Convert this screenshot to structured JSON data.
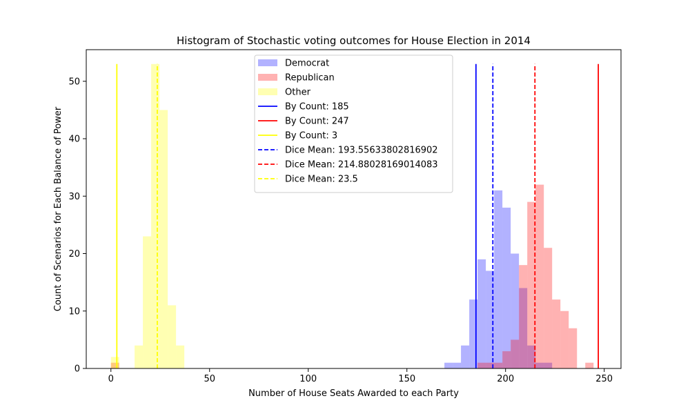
{
  "chart_data": {
    "type": "bar",
    "title": "Histogram of Stochastic voting outcomes for House Election in 2014",
    "xlabel": "Number of House Seats Awarded to each Party",
    "ylabel": "Count of Scenarios for Each Balance of Power",
    "xlim": [
      -12.5,
      258.5
    ],
    "ylim": [
      0,
      55.5
    ],
    "xticks": [
      0,
      50,
      100,
      150,
      200,
      250
    ],
    "yticks": [
      0,
      10,
      20,
      30,
      40,
      50
    ],
    "legend_position": "upper-center",
    "histograms": [
      {
        "name": "Democrat",
        "color": "#0000ff",
        "opacity": 0.3,
        "bin_width": 4.2,
        "bins": [
          {
            "x": 169,
            "count": 1
          },
          {
            "x": 173.2,
            "count": 1
          },
          {
            "x": 177.4,
            "count": 4
          },
          {
            "x": 181.6,
            "count": 12
          },
          {
            "x": 185.8,
            "count": 19
          },
          {
            "x": 190,
            "count": 17
          },
          {
            "x": 194.2,
            "count": 31
          },
          {
            "x": 198.4,
            "count": 28
          },
          {
            "x": 202.6,
            "count": 20
          },
          {
            "x": 206.8,
            "count": 14
          },
          {
            "x": 211,
            "count": 4
          },
          {
            "x": 215.2,
            "count": 1
          },
          {
            "x": 219.4,
            "count": 1
          }
        ]
      },
      {
        "name": "Republican",
        "color": "#ff0000",
        "opacity": 0.3,
        "bin_width": 4.2,
        "bins": [
          {
            "x": 0,
            "count": 1
          },
          {
            "x": 185.8,
            "count": 1
          },
          {
            "x": 190,
            "count": 1
          },
          {
            "x": 194.2,
            "count": 1
          },
          {
            "x": 198.4,
            "count": 3
          },
          {
            "x": 202.6,
            "count": 5
          },
          {
            "x": 206.8,
            "count": 18
          },
          {
            "x": 211,
            "count": 29
          },
          {
            "x": 215.2,
            "count": 32
          },
          {
            "x": 219.4,
            "count": 21
          },
          {
            "x": 223.6,
            "count": 12
          },
          {
            "x": 227.8,
            "count": 10
          },
          {
            "x": 232,
            "count": 7
          },
          {
            "x": 240.4,
            "count": 1
          }
        ]
      },
      {
        "name": "Other",
        "color": "#ffff00",
        "opacity": 0.3,
        "bin_width": 4.2,
        "bins": [
          {
            "x": 0,
            "count": 2
          },
          {
            "x": 12,
            "count": 4
          },
          {
            "x": 16.2,
            "count": 23
          },
          {
            "x": 20.4,
            "count": 53
          },
          {
            "x": 24.6,
            "count": 45
          },
          {
            "x": 28.8,
            "count": 11
          },
          {
            "x": 33,
            "count": 4
          }
        ]
      }
    ],
    "vlines": [
      {
        "label": "By Count: 185",
        "x": 185,
        "color": "#0000ff",
        "style": "solid",
        "ymax": 53
      },
      {
        "label": "By Count: 247",
        "x": 247,
        "color": "#ff0000",
        "style": "solid",
        "ymax": 53
      },
      {
        "label": "By Count: 3",
        "x": 3,
        "color": "#ffff00",
        "style": "solid",
        "ymax": 53
      },
      {
        "label": "Dice Mean: 193.55633802816902",
        "x": 193.55633802816902,
        "color": "#0000ff",
        "style": "dashed",
        "ymax": 53
      },
      {
        "label": "Dice Mean: 214.88028169014083",
        "x": 214.88028169014083,
        "color": "#ff0000",
        "style": "dashed",
        "ymax": 53
      },
      {
        "label": "Dice Mean: 23.5",
        "x": 23.5,
        "color": "#ffff00",
        "style": "dashed",
        "ymax": 53
      }
    ]
  }
}
